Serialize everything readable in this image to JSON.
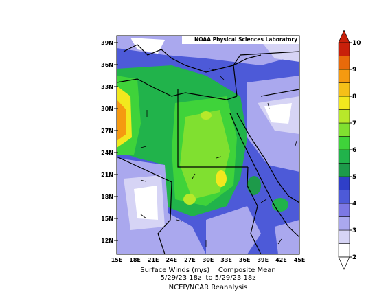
{
  "map": {
    "credit": "NOAA Physical Sciences Laboratory",
    "lat_labels": [
      "39N",
      "36N",
      "33N",
      "30N",
      "27N",
      "24N",
      "21N",
      "18N",
      "15N",
      "12N"
    ],
    "lon_labels": [
      "15E",
      "18E",
      "21E",
      "24E",
      "27E",
      "30E",
      "33E",
      "36E",
      "39E",
      "42E",
      "45E"
    ]
  },
  "caption": {
    "line1": "Surface Winds (m/s)    Composite Mean",
    "line2": "5/29/23 18z  to 5/29/23 18z",
    "line3": "NCEP/NCAR Reanalysis"
  },
  "colorbar": {
    "lim": [
      2,
      10
    ],
    "ticks": [
      2,
      3,
      4,
      5,
      6,
      7,
      8,
      9,
      10
    ],
    "colors": [
      "#ffffff",
      "#d6d4f5",
      "#aaa8ee",
      "#7c78e4",
      "#4d5ad8",
      "#2f3fc8",
      "#1d9a4a",
      "#21b34b",
      "#3fd33a",
      "#80e030",
      "#b8e82a",
      "#f2e81e",
      "#f5c018",
      "#f59a10",
      "#e86a0a",
      "#c8200a"
    ]
  }
}
